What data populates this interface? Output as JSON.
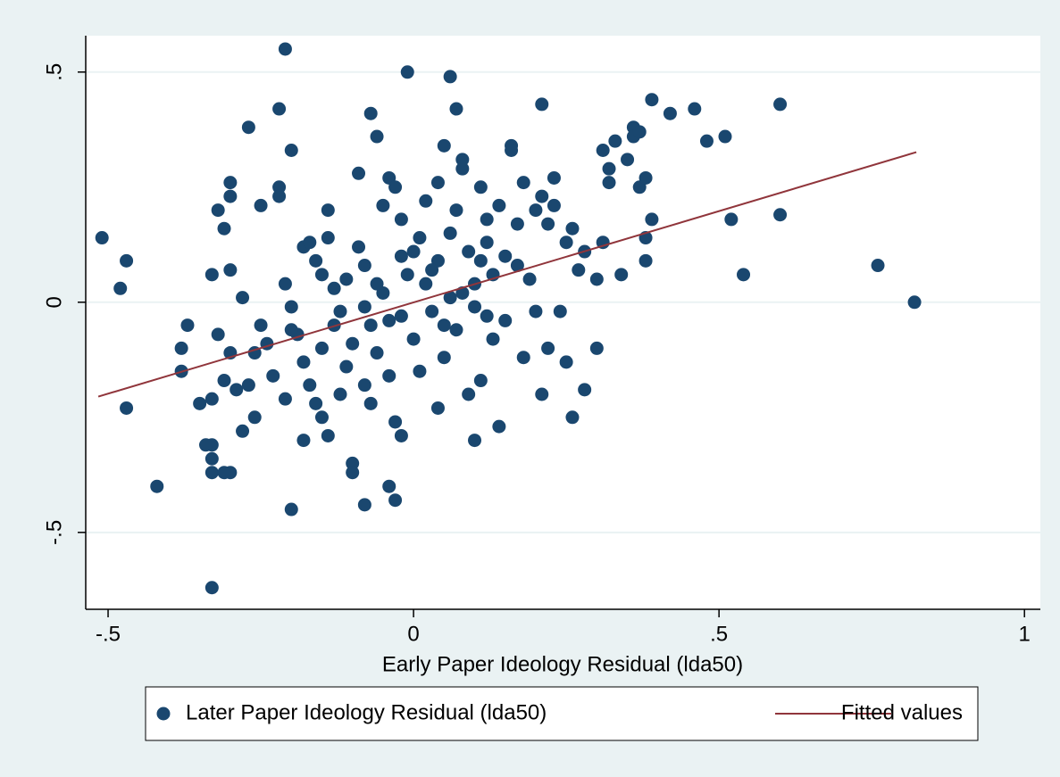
{
  "chart_data": {
    "type": "scatter",
    "xlabel": "Early Paper Ideology Residual (lda50)",
    "xlim": [
      -0.5366,
      1.026
    ],
    "ylim": [
      -0.667,
      0.579
    ],
    "xticks": [
      {
        "value": -0.5,
        "label": "-.5"
      },
      0,
      {
        "value": 0.5,
        "label": ".5"
      },
      1
    ],
    "yticks": [
      {
        "value": -0.5,
        "label": "-.5"
      },
      0,
      {
        "value": 0.5,
        "label": ".5"
      }
    ],
    "grid": true,
    "legend": "bottom",
    "series": [
      {
        "name": "Later Paper Ideology Residual (lda50)",
        "type": "scatter",
        "color": "#1a476f",
        "x": [
          -0.51,
          -0.48,
          -0.47,
          -0.47,
          -0.42,
          -0.33,
          -0.21,
          -0.01,
          0.06,
          -0.22,
          -0.27,
          -0.2,
          -0.07,
          -0.06,
          0.07,
          0.21,
          0.39,
          0.6,
          0.46,
          0.42,
          0.51,
          0.48,
          0.6,
          0.52,
          0.54,
          0.76,
          0.82,
          -0.2,
          -0.08,
          -0.03,
          -0.04,
          -0.33,
          -0.3,
          -0.33,
          -0.33,
          -0.3,
          -0.28,
          -0.32,
          -0.3,
          -0.29,
          -0.31,
          -0.27,
          -0.26,
          -0.28,
          -0.35,
          -0.37,
          -0.38,
          -0.38,
          -0.33,
          -0.33,
          -0.34,
          -0.31,
          -0.32,
          -0.3,
          -0.3,
          -0.25,
          -0.22,
          -0.22,
          -0.31,
          -0.25,
          -0.24,
          -0.26,
          -0.23,
          -0.21,
          -0.21,
          -0.2,
          -0.19,
          -0.18,
          -0.17,
          -0.16,
          -0.15,
          -0.14,
          -0.14,
          -0.13,
          -0.12,
          -0.18,
          -0.17,
          -0.16,
          -0.15,
          -0.14,
          -0.18,
          -0.12,
          -0.11,
          -0.1,
          -0.1,
          -0.1,
          -0.09,
          -0.09,
          -0.08,
          -0.07,
          -0.06,
          -0.05,
          -0.05,
          -0.04,
          -0.03,
          -0.02,
          -0.02,
          -0.01,
          0,
          0,
          0.01,
          0.01,
          0.02,
          0.02,
          0.03,
          0.04,
          0.04,
          0.05,
          0.05,
          0.06,
          0.06,
          0.07,
          0.07,
          0.08,
          0.08,
          0.09,
          0.09,
          0.1,
          0.1,
          0.11,
          0.11,
          0.12,
          0.12,
          0.13,
          0.13,
          0.14,
          0.14,
          0.15,
          0.15,
          0.16,
          0.16,
          0.17,
          0.17,
          0.18,
          0.18,
          0.19,
          0.2,
          0.2,
          0.21,
          0.21,
          0.22,
          0.22,
          0.23,
          0.23,
          0.24,
          0.25,
          0.25,
          0.26,
          0.26,
          0.27,
          0.28,
          0.28,
          0.3,
          0.3,
          0.31,
          0.31,
          0.32,
          0.32,
          0.33,
          0.34,
          0.35,
          0.36,
          0.36,
          0.37,
          0.37,
          0.38,
          0.38,
          0.38,
          0.39,
          -0.04,
          -0.06,
          -0.08,
          -0.11,
          -0.13,
          0.03,
          0.05,
          0.08,
          0.1,
          -0.02,
          -0.04,
          -0.07,
          -0.03,
          -0.02,
          -0.08,
          0.04,
          0.12,
          0.11,
          -0.15,
          -0.2
        ],
        "values": [
          0.14,
          0.03,
          0.09,
          -0.23,
          -0.4,
          -0.62,
          0.55,
          0.5,
          0.49,
          0.42,
          0.38,
          0.33,
          0.41,
          0.36,
          0.42,
          0.43,
          0.44,
          0.43,
          0.42,
          0.41,
          0.36,
          0.35,
          0.19,
          0.18,
          0.06,
          0.08,
          0,
          -0.45,
          -0.44,
          -0.43,
          -0.4,
          -0.37,
          -0.37,
          -0.31,
          0.06,
          0.07,
          0.01,
          -0.07,
          -0.11,
          -0.19,
          -0.17,
          -0.18,
          -0.25,
          -0.28,
          -0.22,
          -0.05,
          -0.1,
          -0.15,
          -0.21,
          -0.34,
          -0.31,
          -0.37,
          0.2,
          0.23,
          0.26,
          0.21,
          0.25,
          0.23,
          0.16,
          -0.05,
          -0.09,
          -0.11,
          -0.16,
          -0.21,
          0.04,
          -0.01,
          -0.07,
          0.12,
          0.13,
          0.09,
          0.06,
          0.14,
          0.2,
          0.03,
          -0.02,
          -0.13,
          -0.18,
          -0.22,
          -0.25,
          -0.29,
          -0.3,
          -0.2,
          -0.14,
          -0.09,
          -0.35,
          -0.37,
          0.28,
          0.12,
          0.08,
          -0.05,
          -0.11,
          0.02,
          0.21,
          0.27,
          0.25,
          0.18,
          -0.03,
          0.06,
          0.11,
          -0.08,
          0.14,
          -0.15,
          0.04,
          0.22,
          -0.02,
          0.09,
          0.26,
          0.34,
          -0.12,
          0.15,
          0.01,
          -0.06,
          0.2,
          0.29,
          0.31,
          0.11,
          -0.2,
          0.04,
          -0.3,
          0.25,
          -0.17,
          0.13,
          0.18,
          -0.08,
          0.06,
          0.21,
          -0.27,
          0.1,
          -0.04,
          0.34,
          0.33,
          0.17,
          0.08,
          -0.12,
          0.26,
          0.05,
          0.2,
          -0.02,
          0.23,
          -0.2,
          0.17,
          -0.1,
          0.27,
          0.21,
          -0.02,
          0.13,
          -0.13,
          0.16,
          -0.25,
          0.07,
          -0.19,
          0.11,
          -0.1,
          0.05,
          0.33,
          0.13,
          0.29,
          0.26,
          0.35,
          0.06,
          0.31,
          0.38,
          0.36,
          0.37,
          0.25,
          0.09,
          0.14,
          0.27,
          0.18,
          -0.04,
          0.04,
          -0.01,
          0.05,
          -0.05,
          0.07,
          -0.05,
          0.02,
          -0.01,
          0.1,
          -0.16,
          -0.22,
          -0.26,
          -0.29,
          -0.18,
          -0.23,
          -0.03,
          0.09,
          -0.1,
          -0.06
        ]
      },
      {
        "name": "Fitted values",
        "type": "line",
        "color": "#90353b",
        "x": [
          -0.516,
          0.823
        ],
        "values": [
          -0.205,
          0.326
        ]
      }
    ]
  }
}
